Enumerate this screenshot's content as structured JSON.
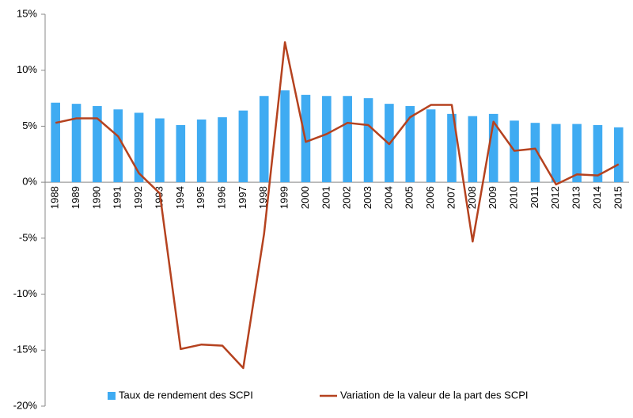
{
  "chart_data": {
    "type": "bar-line",
    "categories": [
      "1988",
      "1989",
      "1990",
      "1991",
      "1992",
      "1993",
      "1994",
      "1995",
      "1996",
      "1997",
      "1998",
      "1999",
      "2000",
      "2001",
      "2002",
      "2003",
      "2004",
      "2005",
      "2006",
      "2007",
      "2008",
      "2009",
      "2010",
      "2011",
      "2012",
      "2013",
      "2014",
      "2015"
    ],
    "series": [
      {
        "name": "Taux de rendement des SCPI",
        "type": "bar",
        "color": "#3fabf2",
        "values": [
          7.1,
          7.0,
          6.8,
          6.5,
          6.2,
          5.7,
          5.1,
          5.6,
          5.8,
          6.4,
          7.7,
          8.2,
          7.8,
          7.7,
          7.7,
          7.5,
          7.0,
          6.8,
          6.5,
          6.1,
          5.9,
          6.1,
          5.5,
          5.3,
          5.2,
          5.2,
          5.1,
          4.9
        ]
      },
      {
        "name": "Variation de la valeur de la part des SCPI",
        "type": "line",
        "color": "#b5421f",
        "values": [
          5.3,
          5.7,
          5.7,
          4.1,
          0.8,
          -1.0,
          -14.9,
          -14.5,
          -14.6,
          -16.6,
          -4.6,
          12.5,
          3.6,
          4.3,
          5.3,
          5.1,
          3.4,
          5.8,
          6.9,
          6.9,
          -5.3,
          5.4,
          2.8,
          3.0,
          -0.2,
          0.7,
          0.6,
          1.6
        ]
      }
    ],
    "ylim": [
      -20,
      15
    ],
    "yticks": [
      {
        "value": -20,
        "label": "-20%"
      },
      {
        "value": -15,
        "label": "-15%"
      },
      {
        "value": -10,
        "label": "-10%"
      },
      {
        "value": -5,
        "label": "-5%"
      },
      {
        "value": 0,
        "label": "0%"
      },
      {
        "value": 5,
        "label": "5%"
      },
      {
        "value": 10,
        "label": "10%"
      },
      {
        "value": 15,
        "label": "15%"
      }
    ],
    "grid": false,
    "legend": "bottom"
  }
}
